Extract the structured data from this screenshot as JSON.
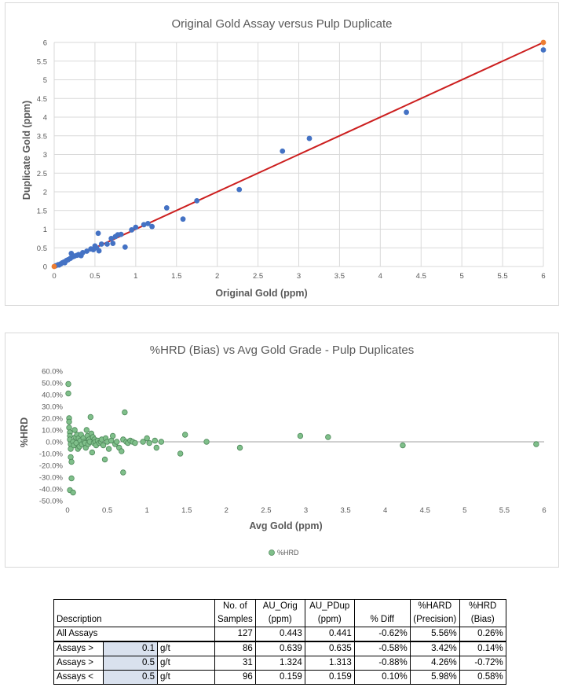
{
  "charts": [
    {
      "title": "Original Gold Assay versus Pulp Duplicate",
      "xlabel": "Original Gold (ppm)",
      "ylabel": "Duplicate Gold (ppm)",
      "xticks": [
        "0",
        "0.5",
        "1",
        "1.5",
        "2",
        "2.5",
        "3",
        "3.5",
        "4",
        "4.5",
        "5",
        "5.5",
        "6"
      ],
      "yticks": [
        "0",
        "0.5",
        "1",
        "1.5",
        "2",
        "2.5",
        "3",
        "3.5",
        "4",
        "4.5",
        "5",
        "5.5",
        "6"
      ],
      "colors": {
        "points": "#4472c4",
        "line": "#cc1f1f",
        "endpoint": "#ed7d31",
        "grid": "#d9d9d9"
      }
    },
    {
      "title": "%HRD (Bias) vs Avg Gold Grade - Pulp Duplicates",
      "xlabel": "Avg Gold (ppm)",
      "ylabel": "%HRD",
      "legend": "%HRD",
      "xticks": [
        "0",
        "0.5",
        "1",
        "1.5",
        "2",
        "2.5",
        "3",
        "3.5",
        "4",
        "4.5",
        "5",
        "5.5",
        "6"
      ],
      "yticks": [
        "60.0%",
        "50.0%",
        "40.0%",
        "30.0%",
        "20.0%",
        "10.0%",
        "0.0%",
        "-10.0%",
        "-20.0%",
        "-30.0%",
        "-40.0%",
        "-50.0%"
      ],
      "colors": {
        "points": "#7fbf8a",
        "edge": "#4f8a5b",
        "zero_line": "#a0a0a0"
      }
    }
  ],
  "chart_data": [
    {
      "type": "scatter",
      "title": "Original Gold Assay versus Pulp Duplicate",
      "xlabel": "Original Gold (ppm)",
      "ylabel": "Duplicate Gold (ppm)",
      "xlim": [
        0,
        6
      ],
      "ylim": [
        0,
        6
      ],
      "grid": true,
      "series": [
        {
          "points": [
            [
              0.02,
              0.02
            ],
            [
              0.05,
              0.05
            ],
            [
              0.06,
              0.04
            ],
            [
              0.08,
              0.07
            ],
            [
              0.1,
              0.1
            ],
            [
              0.12,
              0.12
            ],
            [
              0.13,
              0.1
            ],
            [
              0.15,
              0.16
            ],
            [
              0.17,
              0.18
            ],
            [
              0.2,
              0.22
            ],
            [
              0.21,
              0.35
            ],
            [
              0.23,
              0.26
            ],
            [
              0.25,
              0.28
            ],
            [
              0.28,
              0.3
            ],
            [
              0.3,
              0.32
            ],
            [
              0.33,
              0.29
            ],
            [
              0.35,
              0.37
            ],
            [
              0.4,
              0.41
            ],
            [
              0.45,
              0.47
            ],
            [
              0.48,
              0.45
            ],
            [
              0.5,
              0.55
            ],
            [
              0.52,
              0.5
            ],
            [
              0.54,
              0.89
            ],
            [
              0.55,
              0.42
            ],
            [
              0.58,
              0.6
            ],
            [
              0.65,
              0.6
            ],
            [
              0.7,
              0.75
            ],
            [
              0.72,
              0.62
            ],
            [
              0.75,
              0.8
            ],
            [
              0.78,
              0.85
            ],
            [
              0.82,
              0.86
            ],
            [
              0.87,
              0.52
            ],
            [
              0.95,
              0.98
            ],
            [
              1.0,
              1.05
            ],
            [
              1.1,
              1.12
            ],
            [
              1.15,
              1.15
            ],
            [
              1.2,
              1.07
            ],
            [
              1.38,
              1.57
            ],
            [
              1.58,
              1.27
            ],
            [
              1.75,
              1.76
            ],
            [
              2.27,
              2.06
            ],
            [
              2.8,
              3.09
            ],
            [
              3.13,
              3.43
            ],
            [
              4.32,
              4.13
            ],
            [
              6.0,
              5.8
            ]
          ]
        },
        {
          "name": "trend",
          "type": "line",
          "x": [
            0,
            6
          ],
          "y": [
            0,
            6
          ]
        }
      ]
    },
    {
      "type": "scatter",
      "title": "%HRD (Bias) vs Avg Gold Grade - Pulp Duplicates",
      "xlabel": "Avg Gold (ppm)",
      "ylabel": "%HRD",
      "xlim": [
        0,
        6
      ],
      "ylim": [
        -50,
        60
      ],
      "grid": false,
      "legend": "bottom-center",
      "series": [
        {
          "name": "%HRD",
          "points": [
            [
              0.01,
              49
            ],
            [
              0.01,
              41
            ],
            [
              0.02,
              20
            ],
            [
              0.02,
              17
            ],
            [
              0.02,
              12
            ],
            [
              0.03,
              8
            ],
            [
              0.03,
              5
            ],
            [
              0.03,
              2
            ],
            [
              0.04,
              -2
            ],
            [
              0.04,
              -6
            ],
            [
              0.04,
              -13
            ],
            [
              0.05,
              -17
            ],
            [
              0.03,
              -41
            ],
            [
              0.05,
              -31
            ],
            [
              0.07,
              -43
            ],
            [
              0.07,
              0
            ],
            [
              0.08,
              -3
            ],
            [
              0.09,
              10
            ],
            [
              0.1,
              4
            ],
            [
              0.11,
              -1
            ],
            [
              0.12,
              6
            ],
            [
              0.13,
              -6
            ],
            [
              0.14,
              3
            ],
            [
              0.15,
              -4
            ],
            [
              0.16,
              1
            ],
            [
              0.17,
              6
            ],
            [
              0.18,
              -2
            ],
            [
              0.2,
              3
            ],
            [
              0.21,
              0
            ],
            [
              0.22,
              -1
            ],
            [
              0.23,
              -5
            ],
            [
              0.24,
              10
            ],
            [
              0.25,
              5
            ],
            [
              0.26,
              -2
            ],
            [
              0.27,
              2
            ],
            [
              0.28,
              0
            ],
            [
              0.29,
              21
            ],
            [
              0.3,
              7
            ],
            [
              0.31,
              -9
            ],
            [
              0.32,
              4
            ],
            [
              0.33,
              -1
            ],
            [
              0.34,
              2
            ],
            [
              0.35,
              0
            ],
            [
              0.36,
              -3
            ],
            [
              0.38,
              1
            ],
            [
              0.4,
              -1
            ],
            [
              0.42,
              0
            ],
            [
              0.43,
              2
            ],
            [
              0.45,
              -3
            ],
            [
              0.47,
              -15
            ],
            [
              0.48,
              3
            ],
            [
              0.5,
              0
            ],
            [
              0.52,
              -6
            ],
            [
              0.55,
              1
            ],
            [
              0.57,
              5
            ],
            [
              0.6,
              -2
            ],
            [
              0.62,
              0
            ],
            [
              0.65,
              -5
            ],
            [
              0.68,
              -8
            ],
            [
              0.7,
              2
            ],
            [
              0.72,
              25
            ],
            [
              0.7,
              -26
            ],
            [
              0.74,
              0
            ],
            [
              0.76,
              -1
            ],
            [
              0.79,
              1
            ],
            [
              0.82,
              0
            ],
            [
              0.85,
              -1
            ],
            [
              0.95,
              0
            ],
            [
              1.0,
              3
            ],
            [
              1.03,
              -1
            ],
            [
              1.1,
              1
            ],
            [
              1.12,
              -5
            ],
            [
              1.18,
              0
            ],
            [
              1.42,
              -10
            ],
            [
              1.48,
              6
            ],
            [
              1.75,
              0
            ],
            [
              2.17,
              -5
            ],
            [
              2.93,
              5
            ],
            [
              3.28,
              4
            ],
            [
              4.22,
              -3
            ],
            [
              5.9,
              -2
            ]
          ]
        }
      ]
    }
  ],
  "summary_table": {
    "headers": [
      {
        "line1": "",
        "line2": "Description"
      },
      {
        "line1": "No. of",
        "line2": "Samples"
      },
      {
        "line1": "AU_Orig",
        "line2": "(ppm)"
      },
      {
        "line1": "AU_PDup",
        "line2": "(ppm)"
      },
      {
        "line1": "",
        "line2": "% Diff"
      },
      {
        "line1": "%HARD",
        "line2": "(Precision)"
      },
      {
        "line1": "%HRD",
        "line2": "(Bias)"
      }
    ],
    "rows": [
      {
        "label": "All Assays",
        "threshold": "",
        "unit": "",
        "samples": "127",
        "au_orig": "0.443",
        "au_pdup": "0.441",
        "diff": "-0.62%",
        "hard": "5.56%",
        "hrd": "0.26%"
      },
      {
        "label": "Assays >",
        "threshold": "0.1",
        "unit": "g/t",
        "samples": "86",
        "au_orig": "0.639",
        "au_pdup": "0.635",
        "diff": "-0.58%",
        "hard": "3.42%",
        "hrd": "0.14%"
      },
      {
        "label": "Assays >",
        "threshold": "0.5",
        "unit": "g/t",
        "samples": "31",
        "au_orig": "1.324",
        "au_pdup": "1.313",
        "diff": "-0.88%",
        "hard": "4.26%",
        "hrd": "-0.72%"
      },
      {
        "label": "Assays <",
        "threshold": "0.5",
        "unit": "g/t",
        "samples": "96",
        "au_orig": "0.159",
        "au_pdup": "0.159",
        "diff": "0.10%",
        "hard": "5.98%",
        "hrd": "0.58%"
      }
    ]
  }
}
